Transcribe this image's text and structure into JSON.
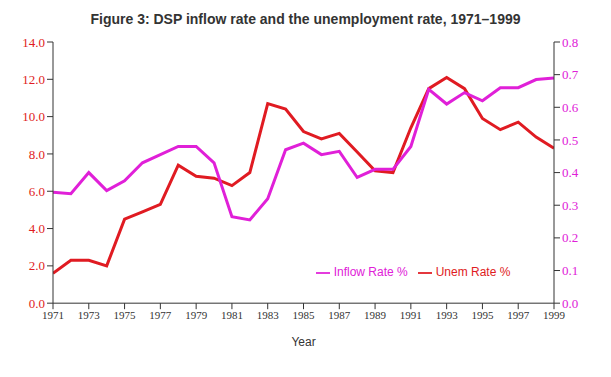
{
  "chart_data": {
    "type": "line",
    "title": "Figure 3: DSP inflow rate and the unemployment rate, 1971–1999",
    "x_label": "Year",
    "x": [
      1971,
      1972,
      1973,
      1974,
      1975,
      1976,
      1977,
      1978,
      1979,
      1980,
      1981,
      1982,
      1983,
      1984,
      1985,
      1986,
      1987,
      1988,
      1989,
      1990,
      1991,
      1992,
      1993,
      1994,
      1995,
      1996,
      1997,
      1998,
      1999
    ],
    "xlim": [
      1971,
      1999
    ],
    "xticks": [
      1971,
      1973,
      1975,
      1977,
      1979,
      1981,
      1983,
      1985,
      1987,
      1989,
      1991,
      1993,
      1995,
      1997,
      1999
    ],
    "ylim": [
      0,
      14
    ],
    "yticks": [
      {
        "value": 0,
        "label": "0.0"
      },
      {
        "value": 2,
        "label": "2.0"
      },
      {
        "value": 4,
        "label": "4.0"
      },
      {
        "value": 6,
        "label": "6.0"
      },
      {
        "value": 8,
        "label": "8.0"
      },
      {
        "value": 10,
        "label": "10.0"
      },
      {
        "value": 12,
        "label": "12.0"
      },
      {
        "value": 14,
        "label": "14.0"
      }
    ],
    "y2lim": [
      0,
      0.8
    ],
    "y2ticks": [
      {
        "value": 0,
        "label": "0.0"
      },
      0.1,
      0.2,
      0.3,
      0.4,
      0.5,
      0.6,
      0.7,
      0.8
    ],
    "grid": false,
    "legend": "lower right",
    "series": [
      {
        "name": "Unem Rate %",
        "color": "#e01b22",
        "values": [
          1.6,
          2.3,
          2.3,
          2.0,
          4.5,
          4.9,
          5.3,
          7.4,
          6.8,
          6.7,
          6.3,
          7.0,
          10.7,
          10.4,
          9.2,
          8.8,
          9.1,
          8.1,
          7.1,
          7.0,
          9.4,
          11.5,
          12.1,
          11.5,
          9.9,
          9.3,
          9.7,
          8.9,
          8.3
        ]
      },
      {
        "name": "Inflow Rate %",
        "color": "#e020d8",
        "axis": "y2",
        "values": [
          0.34,
          0.335,
          0.4,
          0.345,
          0.375,
          0.43,
          0.455,
          0.48,
          0.48,
          0.43,
          0.265,
          0.255,
          0.32,
          0.47,
          0.49,
          0.455,
          0.465,
          0.385,
          0.41,
          0.41,
          0.48,
          0.655,
          0.61,
          0.645,
          0.62,
          0.66,
          0.66,
          0.685,
          0.69
        ]
      }
    ]
  }
}
